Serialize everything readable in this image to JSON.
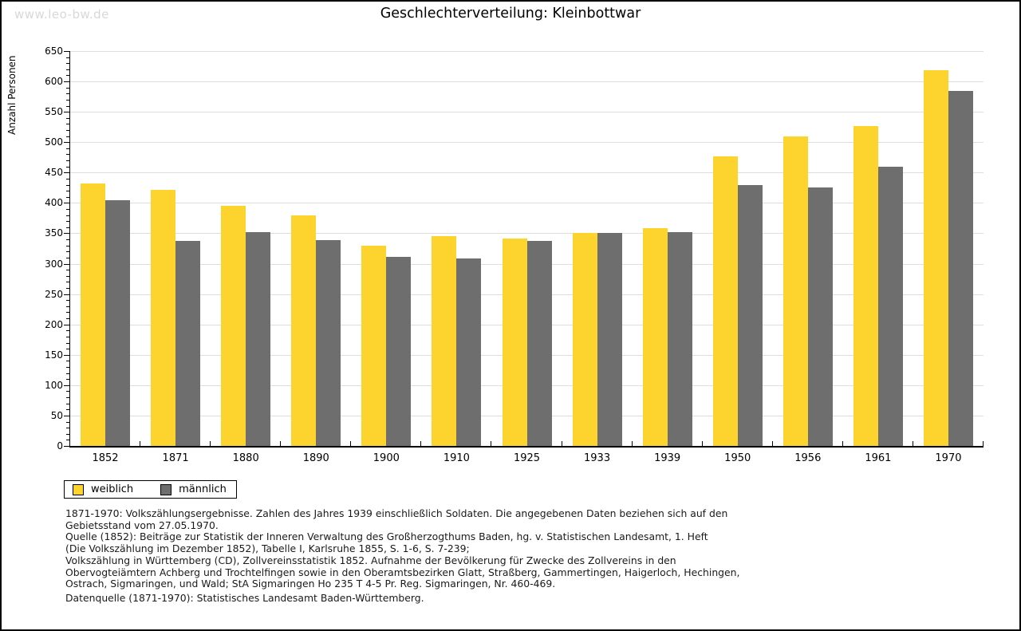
{
  "watermark": "www.leo-bw.de",
  "title": "Geschlechterverteilung: Kleinbottwar",
  "chart_data": {
    "type": "bar",
    "title": "Geschlechterverteilung: Kleinbottwar",
    "xlabel": "",
    "ylabel": "Anzahl Personen",
    "ylim": [
      0,
      650
    ],
    "yticks": [
      0,
      50,
      100,
      150,
      200,
      250,
      300,
      350,
      400,
      450,
      500,
      550,
      600,
      650
    ],
    "ytick_minor_step": 10,
    "grid": true,
    "legend_position": "bottom-left",
    "categories": [
      "1852",
      "1871",
      "1880",
      "1890",
      "1900",
      "1910",
      "1925",
      "1933",
      "1939",
      "1950",
      "1956",
      "1961",
      "1970"
    ],
    "series": [
      {
        "name": "weiblich",
        "color": "#FDD32E",
        "values": [
          432,
          421,
          395,
          380,
          330,
          345,
          342,
          350,
          358,
          477,
          510,
          527,
          619
        ]
      },
      {
        "name": "männlich",
        "color": "#6E6E6E",
        "values": [
          405,
          338,
          352,
          339,
          311,
          308,
          338,
          351,
          352,
          429,
          425,
          460,
          585
        ]
      }
    ]
  },
  "legend": {
    "items": [
      {
        "label": "weiblich",
        "color": "#FDD32E"
      },
      {
        "label": "männlich",
        "color": "#6E6E6E"
      }
    ]
  },
  "footnotes": [
    "1871-1970: Volkszählungsergebnisse. Zahlen des Jahres 1939 einschließlich Soldaten. Die angegebenen Daten beziehen sich auf den",
    "Gebietsstand vom 27.05.1970.",
    "Quelle (1852): Beiträge zur Statistik der Inneren Verwaltung des Großherzogthums Baden, hg. v. Statistischen Landesamt, 1. Heft",
    "(Die Volkszählung im Dezember 1852), Tabelle I, Karlsruhe 1855, S. 1-6, S. 7-239;",
    "Volkszählung in Württemberg (CD), Zollvereinsstatistik 1852. Aufnahme der Bevölkerung für Zwecke des Zollvereins in den",
    "Obervogteiämtern Achberg und Trochtelfingen sowie in den Oberamtsbezirken Glatt, Straßberg, Gammertingen, Haigerloch, Hechingen,",
    "Ostrach, Sigmaringen, und Wald; StA Sigmaringen Ho 235 T 4-5 Pr. Reg. Sigmaringen, Nr. 460-469."
  ],
  "datasource": "Datenquelle (1871-1970): Statistisches Landesamt Baden-Württemberg."
}
